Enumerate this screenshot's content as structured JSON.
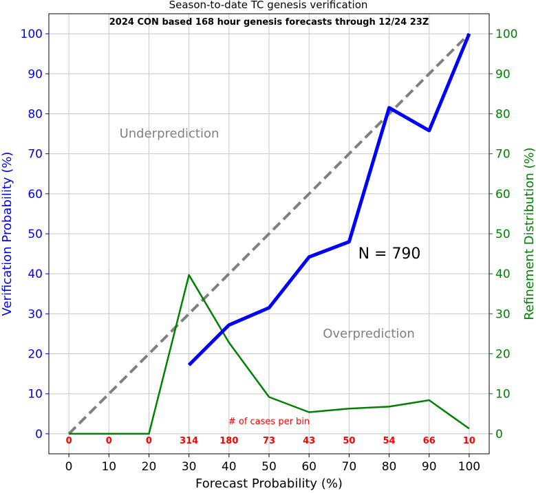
{
  "chart_data": {
    "type": "line",
    "title": "Season-to-date TC genesis verification",
    "subtitle": "2024 CON based 168 hour genesis forecasts through 12/24 23Z",
    "xlabel": "Forecast Probability (%)",
    "ylabel_left": "Verification Probability (%)",
    "ylabel_right": "Refinement Distribution (%)",
    "xlim": [
      -5,
      105
    ],
    "ylim": [
      -5,
      105
    ],
    "x_ticks": [
      0,
      10,
      20,
      30,
      40,
      50,
      60,
      70,
      80,
      90,
      100
    ],
    "y_ticks": [
      0,
      10,
      20,
      30,
      40,
      50,
      60,
      70,
      80,
      90,
      100
    ],
    "grid": true,
    "annotations": {
      "underprediction": "Underprediction",
      "overprediction": "Overprediction",
      "n_label": "N = 790",
      "cases_label": "# of cases per bin"
    },
    "cases_per_bin": [
      {
        "x": 0,
        "count": "0"
      },
      {
        "x": 10,
        "count": "0"
      },
      {
        "x": 20,
        "count": "0"
      },
      {
        "x": 30,
        "count": "314"
      },
      {
        "x": 40,
        "count": "180"
      },
      {
        "x": 50,
        "count": "73"
      },
      {
        "x": 60,
        "count": "43"
      },
      {
        "x": 70,
        "count": "50"
      },
      {
        "x": 80,
        "count": "54"
      },
      {
        "x": 90,
        "count": "66"
      },
      {
        "x": 100,
        "count": "10"
      }
    ],
    "series": [
      {
        "role": "perfect-reliability",
        "color": "#808080",
        "style": "dashed",
        "x": [
          0,
          100
        ],
        "y": [
          0,
          100
        ]
      },
      {
        "role": "verification",
        "color": "#0000ff",
        "style": "solid",
        "x": [
          30,
          40,
          50,
          60,
          70,
          80,
          90,
          100
        ],
        "y": [
          17.2,
          27.2,
          31.5,
          44.2,
          48.0,
          81.5,
          75.8,
          100.0
        ]
      },
      {
        "role": "refinement",
        "color": "#008000",
        "style": "solid",
        "x": [
          0,
          10,
          20,
          30,
          40,
          50,
          60,
          70,
          80,
          90,
          100
        ],
        "y": [
          0,
          0,
          0,
          39.7,
          22.8,
          9.2,
          5.4,
          6.3,
          6.8,
          8.4,
          1.3
        ]
      }
    ]
  },
  "colors": {
    "left_axis": "#0000ff",
    "right_axis": "#008000",
    "bottom_axis": "#000000",
    "annotation_gray": "#808080",
    "counts": "#ff0000",
    "grid": "#c8c8c8"
  }
}
